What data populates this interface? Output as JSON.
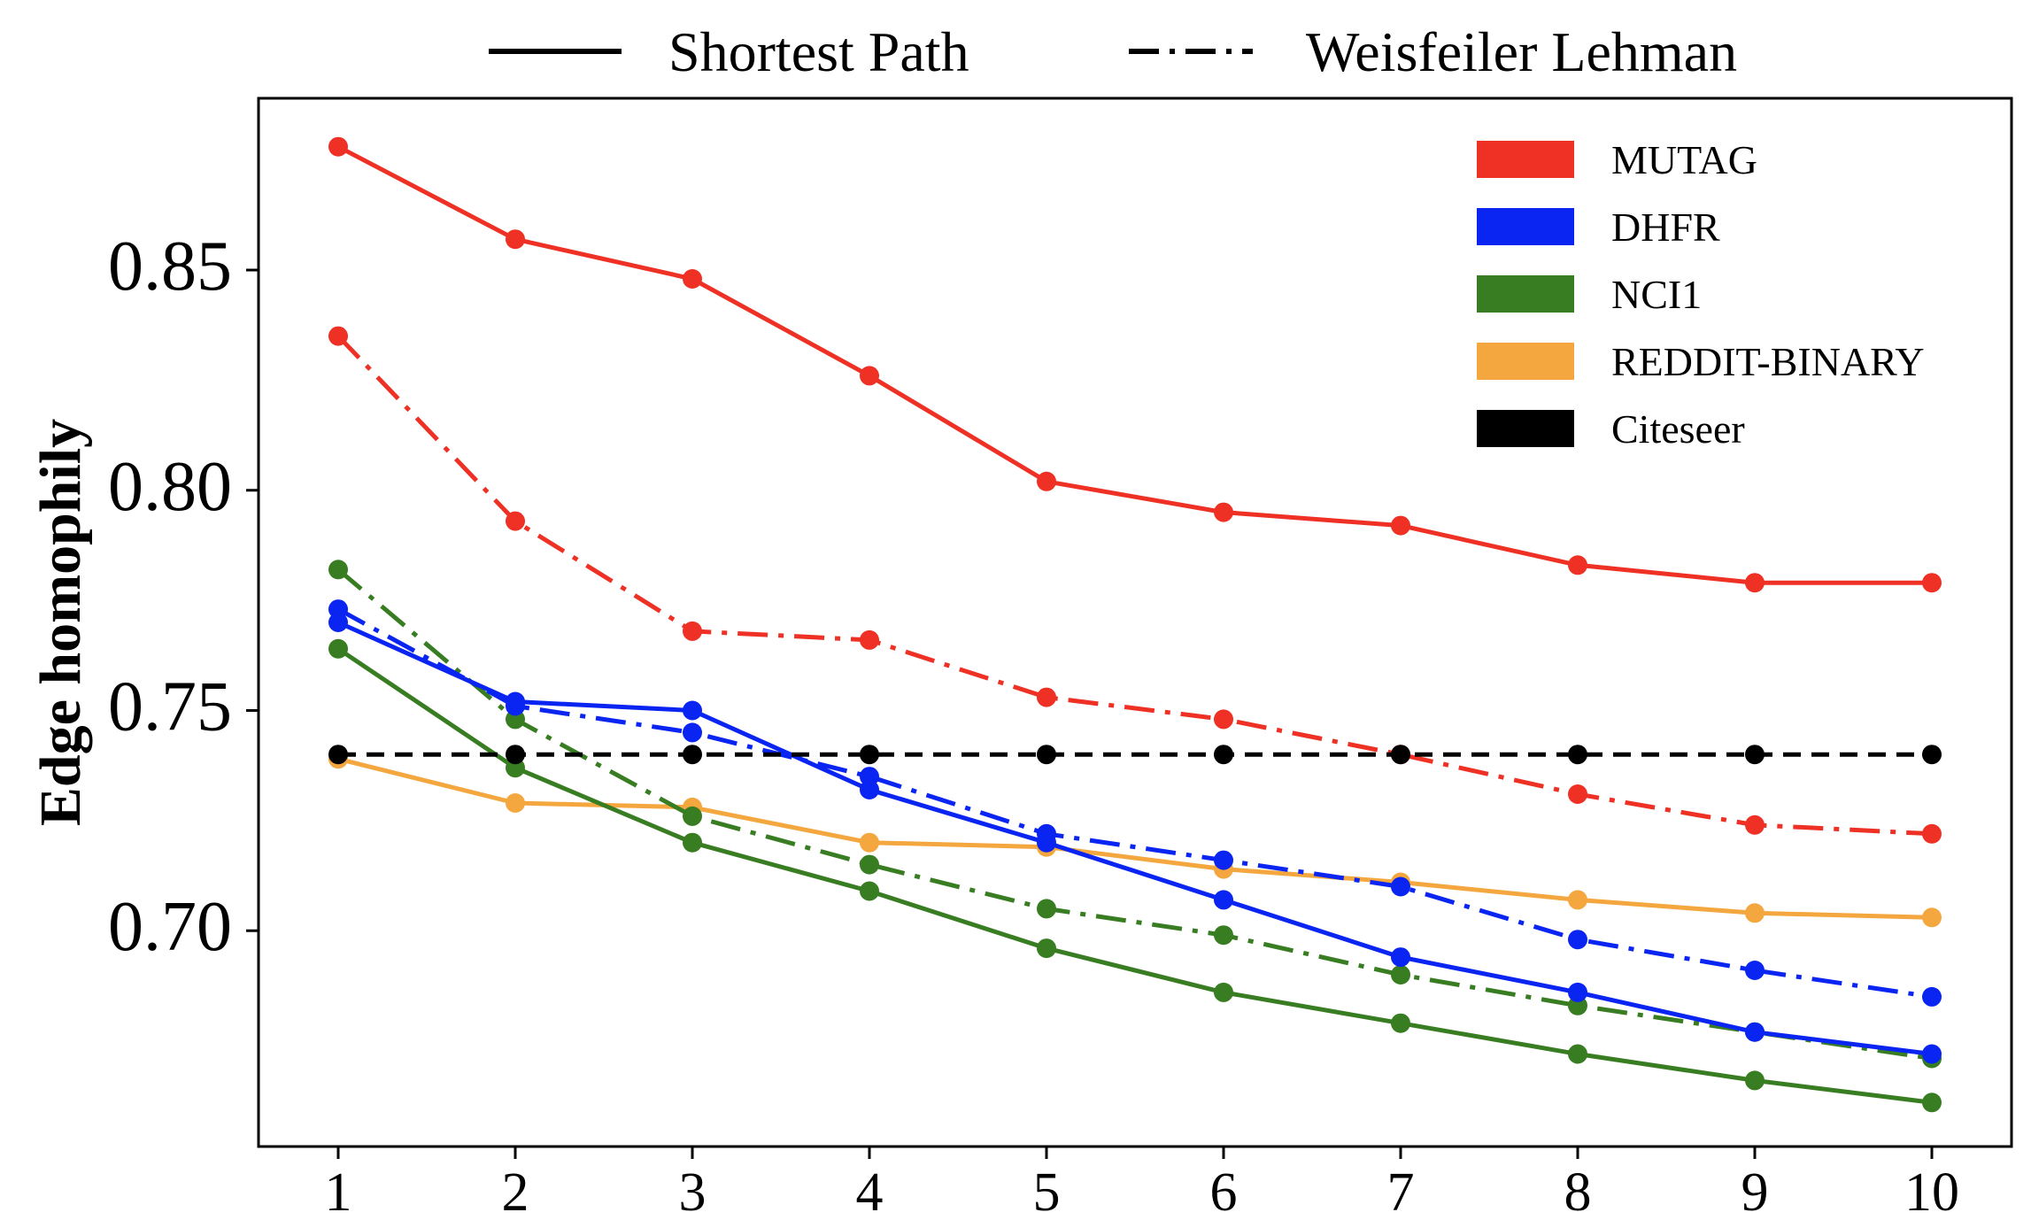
{
  "chart_data": {
    "type": "line",
    "xlabel": "",
    "ylabel": "Edge homophily",
    "x": [
      1,
      2,
      3,
      4,
      5,
      6,
      7,
      8,
      9,
      10
    ],
    "xlim": [
      0.55,
      10.45
    ],
    "ylim": [
      0.651,
      0.889
    ],
    "yticks": [
      0.7,
      0.75,
      0.8,
      0.85
    ],
    "ytick_labels": [
      "0.70",
      "0.75",
      "0.80",
      "0.85"
    ],
    "xtick_labels": [
      "1",
      "2",
      "3",
      "4",
      "5",
      "6",
      "7",
      "8",
      "9",
      "10"
    ],
    "grid": false,
    "style_legend": {
      "placement": "top-center, outside plot",
      "entries": [
        {
          "label": "Shortest Path",
          "dash": "solid"
        },
        {
          "label": "Weisfeiler Lehman",
          "dash": "dashdot"
        }
      ]
    },
    "dataset_legend": {
      "placement": "top-right",
      "entries": [
        {
          "label": "MUTAG",
          "color": "#ee3124"
        },
        {
          "label": "DHFR",
          "color": "#0a25f2"
        },
        {
          "label": "NCI1",
          "color": "#387d22"
        },
        {
          "label": "REDDIT-BINARY",
          "color": "#f4a73f"
        },
        {
          "label": "Citeseer",
          "color": "#000000"
        }
      ]
    },
    "series": [
      {
        "dataset": "MUTAG",
        "method": "Shortest Path",
        "dash": "solid",
        "color": "#ee3124",
        "values": [
          0.878,
          0.857,
          0.848,
          0.826,
          0.802,
          0.795,
          0.792,
          0.783,
          0.779,
          0.779
        ]
      },
      {
        "dataset": "MUTAG",
        "method": "Weisfeiler Lehman",
        "dash": "dashdot",
        "color": "#ee3124",
        "values": [
          0.835,
          0.793,
          0.768,
          0.766,
          0.753,
          0.748,
          0.74,
          0.731,
          0.724,
          0.722
        ]
      },
      {
        "dataset": "DHFR",
        "method": "Shortest Path",
        "dash": "solid",
        "color": "#0a25f2",
        "values": [
          0.77,
          0.752,
          0.75,
          0.732,
          0.72,
          0.707,
          0.694,
          0.686,
          0.677,
          0.672
        ]
      },
      {
        "dataset": "DHFR",
        "method": "Weisfeiler Lehman",
        "dash": "dashdot",
        "color": "#0a25f2",
        "values": [
          0.773,
          0.751,
          0.745,
          0.735,
          0.722,
          0.716,
          0.71,
          0.698,
          0.691,
          0.685
        ]
      },
      {
        "dataset": "NCI1",
        "method": "Shortest Path",
        "dash": "solid",
        "color": "#387d22",
        "values": [
          0.764,
          0.737,
          0.72,
          0.709,
          0.696,
          0.686,
          0.679,
          0.672,
          0.666,
          0.661
        ]
      },
      {
        "dataset": "NCI1",
        "method": "Weisfeiler Lehman",
        "dash": "dashdot",
        "color": "#387d22",
        "values": [
          0.782,
          0.748,
          0.726,
          0.715,
          0.705,
          0.699,
          0.69,
          0.683,
          0.677,
          0.671
        ]
      },
      {
        "dataset": "REDDIT-BINARY",
        "method": "Shortest Path",
        "dash": "solid",
        "color": "#f4a73f",
        "values": [
          0.739,
          0.729,
          0.728,
          0.72,
          0.719,
          0.714,
          0.711,
          0.707,
          0.704,
          0.703
        ]
      },
      {
        "dataset": "Citeseer",
        "method": "Shortest Path",
        "dash": "dashed",
        "color": "#000000",
        "values": [
          0.74,
          0.74,
          0.74,
          0.74,
          0.74,
          0.74,
          0.74,
          0.74,
          0.74,
          0.74
        ]
      }
    ]
  }
}
